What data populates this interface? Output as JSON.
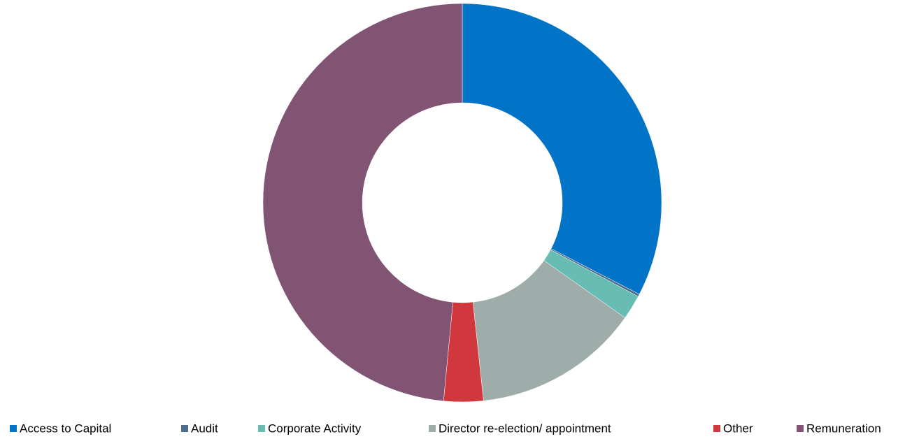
{
  "chart_data": {
    "type": "donut",
    "categories": [
      "Access to Capital",
      "Audit",
      "Corporate Activity",
      "Director re-election/ appointment",
      "Other",
      "Remuneration"
    ],
    "values": [
      32.6,
      0.2,
      2,
      13.5,
      3.2,
      48.5
    ],
    "colors": [
      "#0274c8",
      "#4e6e8e",
      "#67bcb3",
      "#9fadaa",
      "#d0383e",
      "#815473"
    ],
    "legend": "bottom"
  }
}
